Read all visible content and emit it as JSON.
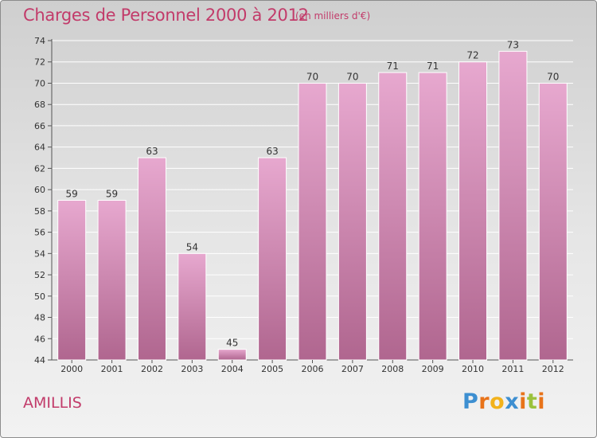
{
  "title": "Charges de Personnel 2000 à 2012",
  "subtitle": "(en milliers d'€)",
  "commune": "AMILLIS",
  "logo": {
    "letters": [
      "P",
      "r",
      "o",
      "x",
      "i",
      "t",
      "i"
    ],
    "colors": [
      "#3d8fd1",
      "#e8731a",
      "#f2b21b",
      "#3d8fd1",
      "#e8731a",
      "#9bc23c",
      "#e8731a"
    ]
  },
  "colors": {
    "title": "#c23b6a",
    "bar_top": "#e7a8cf",
    "bar_bottom": "#b0668f",
    "grid": "#ffffff",
    "axis": "#555555"
  },
  "chart_data": {
    "type": "bar",
    "categories": [
      "2000",
      "2001",
      "2002",
      "2003",
      "2004",
      "2005",
      "2006",
      "2007",
      "2008",
      "2009",
      "2010",
      "2011",
      "2012"
    ],
    "values": [
      59,
      59,
      63,
      54,
      45,
      63,
      70,
      70,
      71,
      71,
      72,
      73,
      70
    ],
    "yticks": [
      44,
      46,
      48,
      50,
      52,
      54,
      56,
      58,
      60,
      62,
      64,
      66,
      68,
      70,
      72,
      74
    ],
    "ylim": [
      44,
      74
    ],
    "grid": true,
    "legend": "none"
  }
}
